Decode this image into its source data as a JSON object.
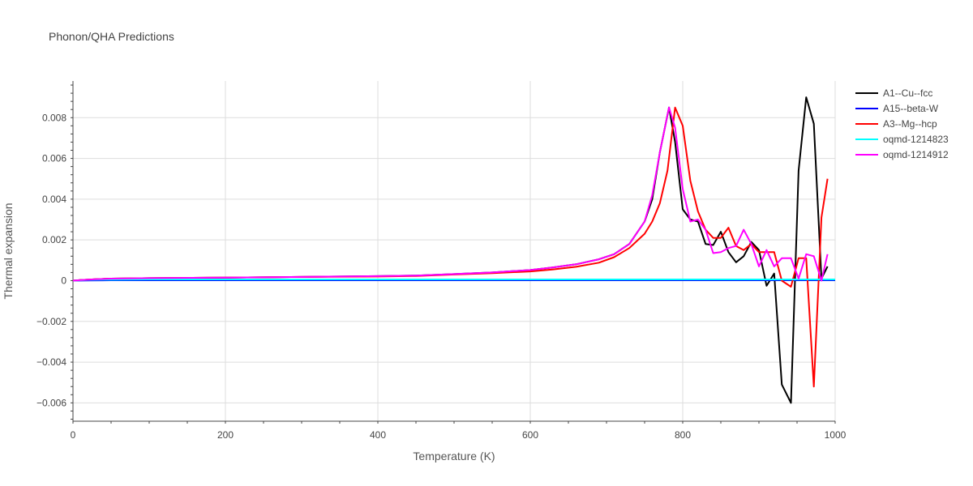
{
  "chart_data": {
    "type": "line",
    "title": "Phonon/QHA Predictions",
    "xlabel": "Temperature (K)",
    "ylabel": "Thermal expansion",
    "xlim": [
      0,
      1000
    ],
    "ylim": [
      -0.0069,
      0.0098
    ],
    "x_ticks": [
      0,
      200,
      400,
      600,
      800,
      1000
    ],
    "x_tick_labels": [
      "0",
      "200",
      "400",
      "600",
      "800",
      "1000"
    ],
    "y_ticks": [
      -0.006,
      -0.004,
      -0.002,
      0,
      0.002,
      0.004,
      0.006,
      0.008
    ],
    "y_tick_labels": [
      "−0.006",
      "−0.004",
      "−0.002",
      "0",
      "0.002",
      "0.004",
      "0.006",
      "0.008"
    ],
    "grid": true,
    "legend_position": "top-right",
    "series": [
      {
        "name": "A1--Cu--fcc",
        "color": "#000000",
        "x": [
          0,
          10,
          20,
          30,
          50,
          100,
          200,
          300,
          400,
          450,
          500,
          550,
          600,
          630,
          660,
          690,
          710,
          730,
          750,
          760,
          770,
          782,
          790,
          800,
          810,
          820,
          830,
          840,
          850,
          860,
          870,
          880,
          890,
          900,
          910,
          920,
          930,
          942,
          952,
          962,
          972,
          982,
          990
        ],
        "y": [
          0,
          3e-05,
          5e-05,
          7e-05,
          0.0001,
          0.00012,
          0.00015,
          0.00018,
          0.00022,
          0.00025,
          0.00032,
          0.0004,
          0.00052,
          0.00065,
          0.0008,
          0.00105,
          0.0013,
          0.0018,
          0.0029,
          0.004,
          0.0063,
          0.0085,
          0.0068,
          0.0035,
          0.003,
          0.0029,
          0.0018,
          0.00175,
          0.0024,
          0.0014,
          0.0009,
          0.0012,
          0.0019,
          0.0015,
          -0.00025,
          0.00035,
          -0.0051,
          -0.006,
          0.0054,
          0.009,
          0.0077,
          0.0001,
          0.0007
        ]
      },
      {
        "name": "A15--beta-W",
        "color": "#0000ff",
        "x": [
          0,
          20,
          50,
          100,
          200,
          400,
          600,
          800,
          1000
        ],
        "y": [
          0,
          1e-05,
          2e-05,
          2e-05,
          2e-05,
          2e-05,
          2e-05,
          2e-05,
          2e-05
        ]
      },
      {
        "name": "A3--Mg--hcp",
        "color": "#ff0000",
        "x": [
          0,
          10,
          20,
          30,
          50,
          100,
          200,
          300,
          400,
          450,
          500,
          550,
          600,
          630,
          660,
          690,
          710,
          730,
          750,
          760,
          770,
          780,
          790,
          800,
          810,
          820,
          830,
          840,
          850,
          860,
          870,
          880,
          890,
          900,
          910,
          920,
          930,
          942,
          952,
          962,
          972,
          982,
          990
        ],
        "y": [
          0,
          3e-05,
          5e-05,
          7e-05,
          0.0001,
          0.00012,
          0.00015,
          0.00018,
          0.0002,
          0.00023,
          0.0003,
          0.00037,
          0.00045,
          0.00055,
          0.00068,
          0.00088,
          0.00115,
          0.0016,
          0.0023,
          0.0029,
          0.0038,
          0.0054,
          0.0085,
          0.0076,
          0.0049,
          0.0034,
          0.0025,
          0.0021,
          0.0021,
          0.0026,
          0.0017,
          0.0015,
          0.0018,
          0.0014,
          0.0014,
          0.0014,
          0.0,
          -0.0003,
          0.0011,
          0.0011,
          -0.0052,
          0.0031,
          0.005
        ]
      },
      {
        "name": "oqmd-1214823",
        "color": "#00ffff",
        "x": [
          0,
          20,
          50,
          100,
          200,
          400,
          600,
          800,
          1000
        ],
        "y": [
          0,
          4e-05,
          5e-05,
          6e-05,
          6e-05,
          6e-05,
          6e-05,
          6e-05,
          6e-05
        ]
      },
      {
        "name": "oqmd-1214912",
        "color": "#ff00ff",
        "x": [
          0,
          10,
          20,
          30,
          50,
          100,
          200,
          300,
          400,
          450,
          500,
          550,
          600,
          630,
          660,
          690,
          710,
          730,
          750,
          760,
          770,
          782,
          790,
          800,
          810,
          820,
          830,
          840,
          850,
          860,
          870,
          880,
          890,
          900,
          910,
          920,
          930,
          942,
          952,
          962,
          972,
          982,
          990
        ],
        "y": [
          0,
          3e-05,
          5e-05,
          7e-05,
          0.0001,
          0.00012,
          0.00015,
          0.00018,
          0.00022,
          0.00025,
          0.00032,
          0.0004,
          0.00052,
          0.00065,
          0.0008,
          0.00105,
          0.0013,
          0.0018,
          0.0029,
          0.0042,
          0.0063,
          0.0085,
          0.0075,
          0.0045,
          0.0029,
          0.003,
          0.0025,
          0.00135,
          0.0014,
          0.0016,
          0.0017,
          0.0025,
          0.0018,
          0.0007,
          0.0015,
          0.0007,
          0.0011,
          0.0011,
          0.0001,
          0.0013,
          0.0012,
          0.0,
          0.0013
        ]
      }
    ]
  }
}
